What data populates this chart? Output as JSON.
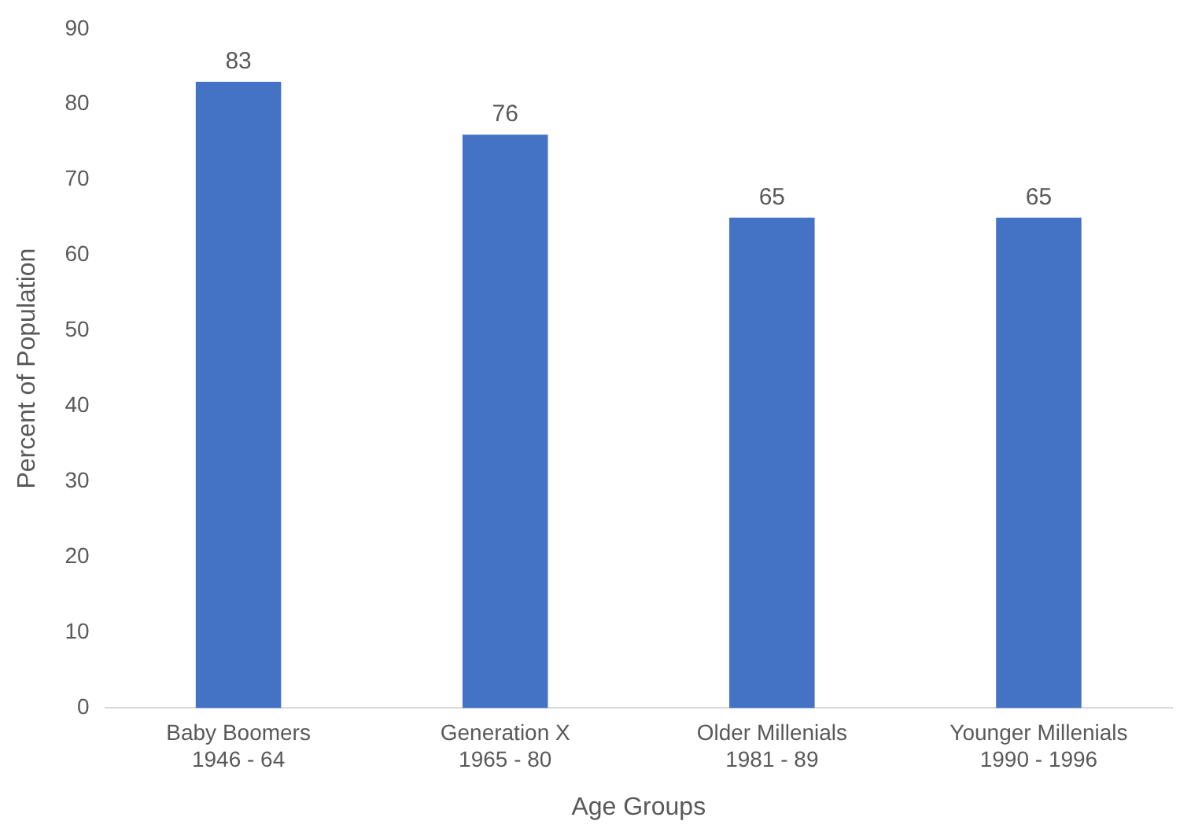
{
  "chart_data": {
    "type": "bar",
    "xlabel": "Age Groups",
    "ylabel": "Percent of Population",
    "categories": [
      "Baby Boomers\n1946 - 64",
      "Generation X\n1965 - 80",
      "Older Millenials\n1981 - 89",
      "Younger Millenials\n1990 - 1996"
    ],
    "values": [
      83,
      76,
      65,
      65
    ],
    "color": "#4472c4",
    "ylim": [
      0,
      90
    ],
    "yticks": [
      0,
      10,
      20,
      30,
      40,
      50,
      60,
      70,
      80,
      90
    ],
    "grid": false,
    "legend": false,
    "data_labels": true
  }
}
